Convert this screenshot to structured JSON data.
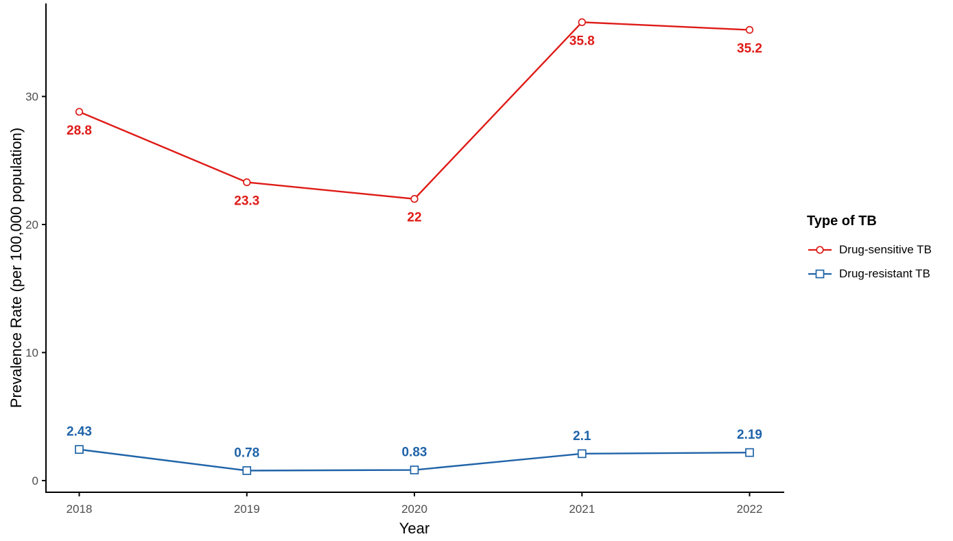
{
  "chart_data": {
    "type": "line",
    "title": "",
    "xlabel": "Year",
    "ylabel": "Prevalence Rate (per 100,000 population)",
    "categories": [
      "2018",
      "2019",
      "2020",
      "2021",
      "2022"
    ],
    "y_ticks": [
      0,
      10,
      20,
      30
    ],
    "ylim": [
      -0.9,
      37.3
    ],
    "grid": false,
    "background": "#ffffff",
    "axis_color": "#000000",
    "tick_label_color": "#4D4D4D",
    "legend": {
      "title": "Type of TB",
      "position": "right"
    },
    "series": [
      {
        "name": "Drug-sensitive TB",
        "color": "#DE1B17",
        "marker": "circle",
        "values": [
          28.8,
          23.3,
          22,
          35.8,
          35.2
        ],
        "labels": [
          "28.8",
          "23.3",
          "22",
          "35.8",
          "35.2"
        ],
        "label_position": "below"
      },
      {
        "name": "Drug-resistant TB",
        "color": "#1F63A8",
        "marker": "square",
        "values": [
          2.43,
          0.78,
          0.83,
          2.1,
          2.19
        ],
        "labels": [
          "2.43",
          "0.78",
          "0.83",
          "2.1",
          "2.19"
        ],
        "label_position": "above"
      }
    ]
  }
}
